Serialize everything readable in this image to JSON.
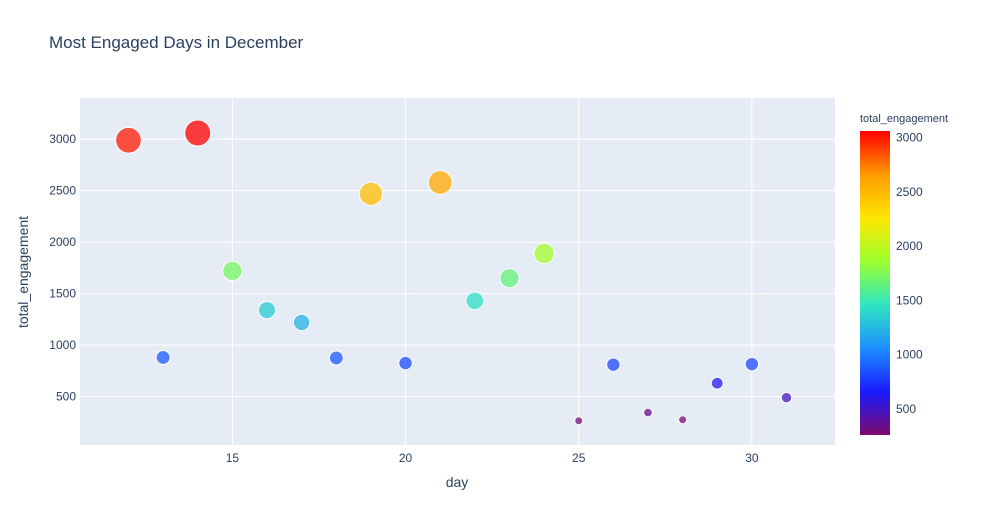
{
  "chart_data": {
    "type": "scatter",
    "title": "Most Engaged Days in December",
    "xlabel": "day",
    "ylabel": "total_engagement",
    "xlim": [
      10.6,
      32.4
    ],
    "ylim": [
      30,
      3400
    ],
    "xticks": [
      15,
      20,
      25,
      30
    ],
    "yticks": [
      500,
      1000,
      1500,
      2000,
      2500,
      3000
    ],
    "grid": true,
    "marker_size_encodes": "total_engagement",
    "colorbar": {
      "title": "total_engagement",
      "range": [
        260,
        3060
      ],
      "ticks": [
        500,
        1000,
        1500,
        2000,
        2500,
        3000
      ],
      "colorscale": [
        "#7d0b6b",
        "#1a1aff",
        "#1e90ff",
        "#2ee6c0",
        "#9cff2e",
        "#ffe600",
        "#ff9a00",
        "#ff0000"
      ]
    },
    "points": [
      {
        "x": 12,
        "y": 2990
      },
      {
        "x": 13,
        "y": 880
      },
      {
        "x": 14,
        "y": 3060
      },
      {
        "x": 15,
        "y": 1720
      },
      {
        "x": 16,
        "y": 1340
      },
      {
        "x": 17,
        "y": 1220
      },
      {
        "x": 18,
        "y": 875
      },
      {
        "x": 19,
        "y": 2470
      },
      {
        "x": 20,
        "y": 825
      },
      {
        "x": 21,
        "y": 2580
      },
      {
        "x": 22,
        "y": 1430
      },
      {
        "x": 23,
        "y": 1650
      },
      {
        "x": 24,
        "y": 1890
      },
      {
        "x": 25,
        "y": 265
      },
      {
        "x": 26,
        "y": 810
      },
      {
        "x": 27,
        "y": 345
      },
      {
        "x": 28,
        "y": 275
      },
      {
        "x": 29,
        "y": 630
      },
      {
        "x": 30,
        "y": 815
      },
      {
        "x": 31,
        "y": 490
      }
    ]
  }
}
